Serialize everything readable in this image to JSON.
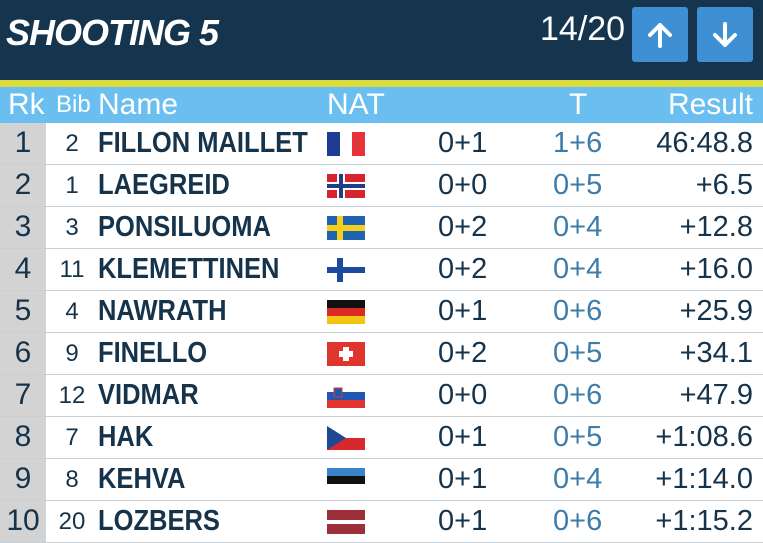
{
  "header": {
    "title": "SHOOTING 5",
    "page": "14/20",
    "up_icon": "arrow-up-icon",
    "down_icon": "arrow-down-icon"
  },
  "columns": {
    "rk": "Rk",
    "bib": "Bib",
    "name": "Name",
    "nat": "NAT",
    "t": "T",
    "result": "Result"
  },
  "colors": {
    "topbar": "#15354e",
    "accent": "#d9dc3c",
    "header": "#6bbff0",
    "button": "#3e8fd3"
  },
  "rows": [
    {
      "rk": "1",
      "bib": "2",
      "name": "FILLON MAILLET",
      "flag": "FRA",
      "shots": "0+1",
      "t": "1+6",
      "result": "46:48.8"
    },
    {
      "rk": "2",
      "bib": "1",
      "name": "LAEGREID",
      "flag": "NOR",
      "shots": "0+0",
      "t": "0+5",
      "result": "+6.5"
    },
    {
      "rk": "3",
      "bib": "3",
      "name": "PONSILUOMA",
      "flag": "SWE",
      "shots": "0+2",
      "t": "0+4",
      "result": "+12.8"
    },
    {
      "rk": "4",
      "bib": "11",
      "name": "KLEMETTINEN",
      "flag": "FIN",
      "shots": "0+2",
      "t": "0+4",
      "result": "+16.0"
    },
    {
      "rk": "5",
      "bib": "4",
      "name": "NAWRATH",
      "flag": "GER",
      "shots": "0+1",
      "t": "0+6",
      "result": "+25.9"
    },
    {
      "rk": "6",
      "bib": "9",
      "name": "FINELLO",
      "flag": "SUI",
      "shots": "0+2",
      "t": "0+5",
      "result": "+34.1"
    },
    {
      "rk": "7",
      "bib": "12",
      "name": "VIDMAR",
      "flag": "SLO",
      "shots": "0+0",
      "t": "0+6",
      "result": "+47.9"
    },
    {
      "rk": "8",
      "bib": "7",
      "name": "HAK",
      "flag": "CZE",
      "shots": "0+1",
      "t": "0+5",
      "result": "+1:08.6"
    },
    {
      "rk": "9",
      "bib": "8",
      "name": "KEHVA",
      "flag": "EST",
      "shots": "0+1",
      "t": "0+4",
      "result": "+1:14.0"
    },
    {
      "rk": "10",
      "bib": "20",
      "name": "LOZBERS",
      "flag": "LAT",
      "shots": "0+1",
      "t": "0+6",
      "result": "+1:15.2"
    }
  ]
}
